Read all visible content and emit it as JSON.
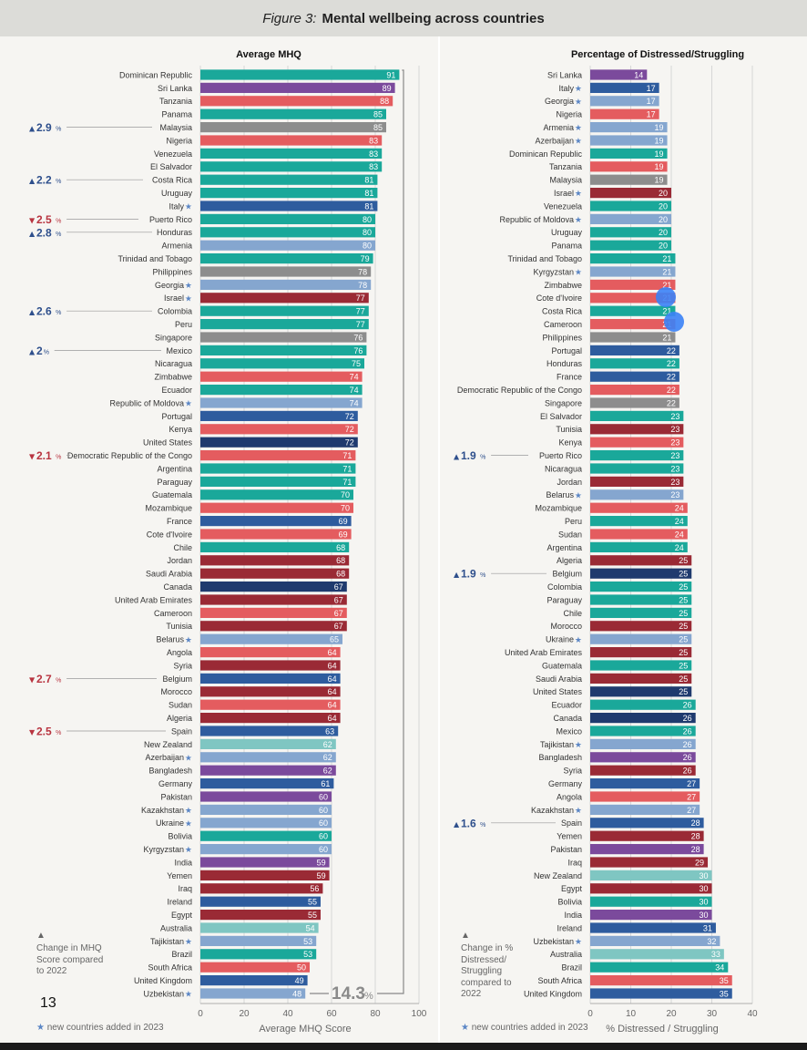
{
  "figure_label": "Figure 3:",
  "figure_title": "Mental wellbeing across countries",
  "page_number": "13",
  "colors": {
    "teal": "#1aa89a",
    "purple": "#7b4a9c",
    "coral": "#e45c5f",
    "gray": "#8d8d8d",
    "darkred": "#9a2a35",
    "blue": "#2e5c9e",
    "navy": "#1f3a6e",
    "lightblue": "#85a6cf",
    "mint": "#7fc6c2",
    "up_arrow": "#2e4f8c",
    "down_arrow": "#b83440",
    "star": "#5b86c5"
  },
  "left_panel": {
    "change_note": "Change in MHQ Score compared to 2022",
    "new_countries_note": "new countries added in 2023",
    "overall_change": "14.3",
    "overall_change_unit": "%"
  },
  "right_panel": {
    "change_note": "Change in % Distressed/ Struggling compared to 2022",
    "new_countries_note": "new countries added in 2023"
  },
  "chart_data": [
    {
      "type": "bar",
      "orientation": "horizontal",
      "title": "Average MHQ",
      "xlabel": "Average MHQ Score",
      "xlim": [
        0,
        100
      ],
      "xticks": [
        0,
        20,
        40,
        60,
        80,
        100
      ],
      "data_labels": true,
      "grid": "vertical",
      "categories": [
        "Dominican Republic",
        "Sri Lanka",
        "Tanzania",
        "Panama",
        "Malaysia",
        "Nigeria",
        "Venezuela",
        "El Salvador",
        "Costa Rica",
        "Uruguay",
        "Italy",
        "Puerto Rico",
        "Honduras",
        "Armenia",
        "Trinidad and Tobago",
        "Philippines",
        "Georgia",
        "Israel",
        "Colombia",
        "Peru",
        "Singapore",
        "Mexico",
        "Nicaragua",
        "Zimbabwe",
        "Ecuador",
        "Republic of Moldova",
        "Portugal",
        "Kenya",
        "United States",
        "Democratic Republic of the Congo",
        "Argentina",
        "Paraguay",
        "Guatemala",
        "Mozambique",
        "France",
        "Cote d'Ivoire",
        "Chile",
        "Jordan",
        "Saudi Arabia",
        "Canada",
        "United Arab Emirates",
        "Cameroon",
        "Tunisia",
        "Belarus",
        "Angola",
        "Syria",
        "Belgium",
        "Morocco",
        "Sudan",
        "Algeria",
        "Spain",
        "New Zealand",
        "Azerbaijan",
        "Bangladesh",
        "Germany",
        "Pakistan",
        "Kazakhstan",
        "Ukraine",
        "Bolivia",
        "Kyrgyzstan",
        "India",
        "Yemen",
        "Iraq",
        "Ireland",
        "Egypt",
        "Australia",
        "Tajikistan",
        "Brazil",
        "South Africa",
        "United Kingdom",
        "Uzbekistan"
      ],
      "values": [
        91,
        89,
        88,
        85,
        85,
        83,
        83,
        83,
        81,
        81,
        81,
        80,
        80,
        80,
        79,
        78,
        78,
        77,
        77,
        77,
        76,
        76,
        75,
        74,
        74,
        74,
        72,
        72,
        72,
        71,
        71,
        71,
        70,
        70,
        69,
        69,
        68,
        68,
        68,
        67,
        67,
        67,
        67,
        65,
        64,
        64,
        64,
        64,
        64,
        64,
        63,
        62,
        62,
        62,
        61,
        60,
        60,
        60,
        60,
        60,
        59,
        59,
        56,
        55,
        55,
        54,
        53,
        53,
        50,
        49,
        48
      ],
      "colors": [
        "teal",
        "purple",
        "coral",
        "teal",
        "gray",
        "coral",
        "teal",
        "teal",
        "teal",
        "teal",
        "blue",
        "teal",
        "teal",
        "lightblue",
        "teal",
        "gray",
        "lightblue",
        "darkred",
        "teal",
        "teal",
        "gray",
        "teal",
        "teal",
        "coral",
        "teal",
        "lightblue",
        "blue",
        "coral",
        "navy",
        "coral",
        "teal",
        "teal",
        "teal",
        "coral",
        "blue",
        "coral",
        "teal",
        "darkred",
        "darkred",
        "navy",
        "darkred",
        "coral",
        "darkred",
        "lightblue",
        "coral",
        "darkred",
        "blue",
        "darkred",
        "coral",
        "darkred",
        "blue",
        "mint",
        "lightblue",
        "purple",
        "blue",
        "purple",
        "lightblue",
        "lightblue",
        "teal",
        "lightblue",
        "purple",
        "darkred",
        "darkred",
        "blue",
        "darkred",
        "mint",
        "lightblue",
        "teal",
        "coral",
        "blue",
        "lightblue"
      ],
      "new_countries": [
        "Italy",
        "Georgia",
        "Israel",
        "Republic of Moldova",
        "Belarus",
        "Azerbaijan",
        "Kazakhstan",
        "Ukraine",
        "Kyrgyzstan",
        "Tajikistan",
        "Uzbekistan"
      ],
      "changes": [
        {
          "country": "Malaysia",
          "direction": "up",
          "value": "2.9"
        },
        {
          "country": "Costa Rica",
          "direction": "up",
          "value": "2.2"
        },
        {
          "country": "Puerto Rico",
          "direction": "down",
          "value": "2.5"
        },
        {
          "country": "Honduras",
          "direction": "up",
          "value": "2.8"
        },
        {
          "country": "Colombia",
          "direction": "up",
          "value": "2.6"
        },
        {
          "country": "Mexico",
          "direction": "up",
          "value": "2"
        },
        {
          "country": "Democratic Republic of the Congo",
          "direction": "down",
          "value": "2.1"
        },
        {
          "country": "Belgium",
          "direction": "down",
          "value": "2.7"
        },
        {
          "country": "Spain",
          "direction": "down",
          "value": "2.5"
        }
      ],
      "change_unit": "%"
    },
    {
      "type": "bar",
      "orientation": "horizontal",
      "title": "Percentage of Distressed/Struggling",
      "xlabel": "% Distressed / Struggling",
      "xlim": [
        0,
        40
      ],
      "xticks": [
        0,
        10,
        20,
        30,
        40
      ],
      "data_labels": true,
      "grid": "vertical",
      "categories": [
        "Sri Lanka",
        "Italy",
        "Georgia",
        "Nigeria",
        "Armenia",
        "Azerbaijan",
        "Dominican Republic",
        "Tanzania",
        "Malaysia",
        "Israel",
        "Venezuela",
        "Republic of Moldova",
        "Uruguay",
        "Panama",
        "Trinidad and Tobago",
        "Kyrgyzstan",
        "Zimbabwe",
        "Cote d'Ivoire",
        "Costa Rica",
        "Cameroon",
        "Philippines",
        "Portugal",
        "Honduras",
        "France",
        "Democratic Republic of the Congo",
        "Singapore",
        "El Salvador",
        "Tunisia",
        "Kenya",
        "Puerto Rico",
        "Nicaragua",
        "Jordan",
        "Belarus",
        "Mozambique",
        "Peru",
        "Sudan",
        "Argentina",
        "Algeria",
        "Belgium",
        "Colombia",
        "Paraguay",
        "Chile",
        "Morocco",
        "Ukraine",
        "United Arab Emirates",
        "Guatemala",
        "Saudi Arabia",
        "United States",
        "Ecuador",
        "Canada",
        "Mexico",
        "Tajikistan",
        "Bangladesh",
        "Syria",
        "Germany",
        "Angola",
        "Kazakhstan",
        "Spain",
        "Yemen",
        "Pakistan",
        "Iraq",
        "New Zealand",
        "Egypt",
        "Bolivia",
        "India",
        "Ireland",
        "Uzbekistan",
        "Australia",
        "Brazil",
        "South Africa",
        "United Kingdom"
      ],
      "values": [
        14,
        17,
        17,
        17,
        19,
        19,
        19,
        19,
        19,
        20,
        20,
        20,
        20,
        20,
        21,
        21,
        21,
        21,
        21,
        21,
        21,
        22,
        22,
        22,
        22,
        22,
        23,
        23,
        23,
        23,
        23,
        23,
        23,
        24,
        24,
        24,
        24,
        25,
        25,
        25,
        25,
        25,
        25,
        25,
        25,
        25,
        25,
        25,
        26,
        26,
        26,
        26,
        26,
        26,
        27,
        27,
        27,
        28,
        28,
        28,
        29,
        30,
        30,
        30,
        30,
        31,
        32,
        33,
        34,
        35,
        35
      ],
      "colors": [
        "purple",
        "blue",
        "lightblue",
        "coral",
        "lightblue",
        "lightblue",
        "teal",
        "coral",
        "gray",
        "darkred",
        "teal",
        "lightblue",
        "teal",
        "teal",
        "teal",
        "lightblue",
        "coral",
        "coral",
        "teal",
        "coral",
        "gray",
        "blue",
        "teal",
        "blue",
        "coral",
        "gray",
        "teal",
        "darkred",
        "coral",
        "teal",
        "teal",
        "darkred",
        "lightblue",
        "coral",
        "teal",
        "coral",
        "teal",
        "darkred",
        "navy",
        "teal",
        "teal",
        "teal",
        "darkred",
        "lightblue",
        "darkred",
        "teal",
        "darkred",
        "navy",
        "teal",
        "navy",
        "teal",
        "lightblue",
        "purple",
        "darkred",
        "blue",
        "coral",
        "lightblue",
        "blue",
        "darkred",
        "purple",
        "darkred",
        "mint",
        "darkred",
        "teal",
        "purple",
        "blue",
        "lightblue",
        "mint",
        "teal",
        "coral",
        "blue"
      ],
      "new_countries": [
        "Italy",
        "Georgia",
        "Armenia",
        "Azerbaijan",
        "Israel",
        "Republic of Moldova",
        "Kyrgyzstan",
        "Belarus",
        "Ukraine",
        "Tajikistan",
        "Kazakhstan",
        "Uzbekistan"
      ],
      "changes": [
        {
          "country": "Puerto Rico",
          "direction": "up",
          "value": "1.9"
        },
        {
          "country": "Belgium",
          "direction": "up",
          "value": "1.9"
        },
        {
          "country": "Spain",
          "direction": "up",
          "value": "1.6"
        }
      ],
      "change_unit": "%"
    }
  ]
}
